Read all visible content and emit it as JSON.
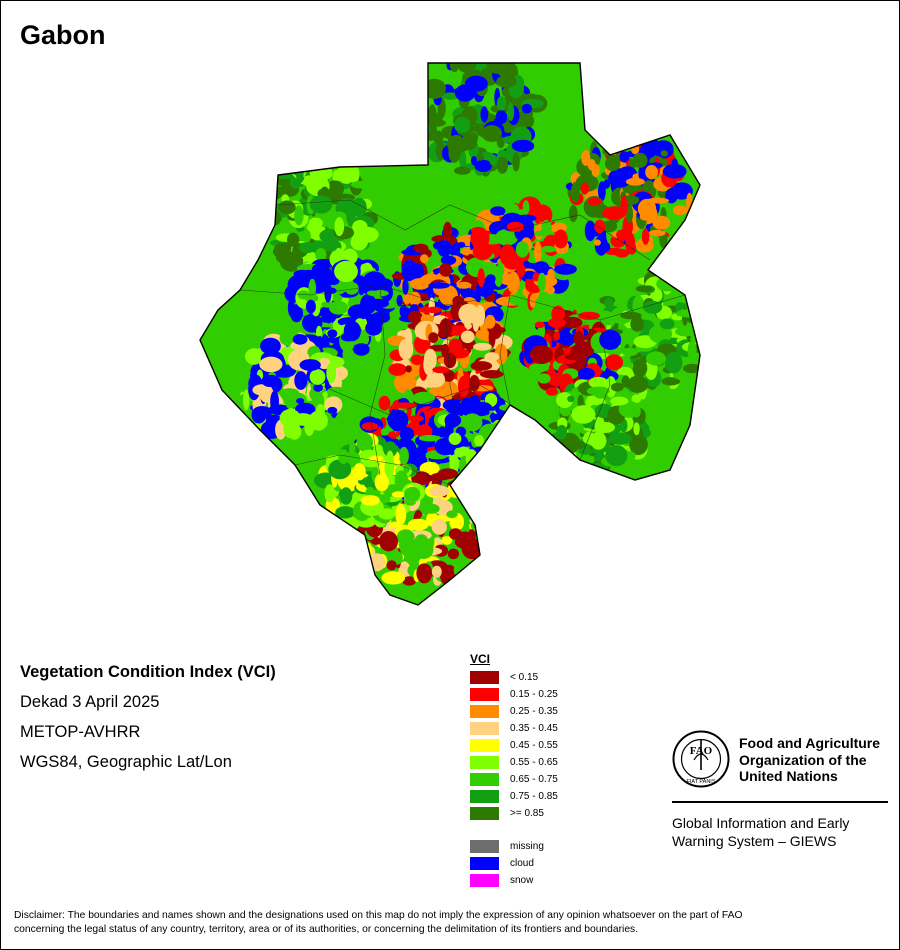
{
  "map": {
    "title": "Gabon",
    "product": "Vegetation Condition Index (VCI)",
    "period": "Dekad 3 April 2025",
    "sensor": "METOP-AVHRR",
    "projection": "WGS84, Geographic Lat/Lon"
  },
  "legend": {
    "title": "VCI",
    "classes": [
      {
        "label": "< 0.15",
        "color": "#a00000"
      },
      {
        "label": "0.15 - 0.25",
        "color": "#ff0000"
      },
      {
        "label": "0.25 - 0.35",
        "color": "#ff8c00"
      },
      {
        "label": "0.35 - 0.45",
        "color": "#ffd27f"
      },
      {
        "label": "0.45 - 0.55",
        "color": "#ffff00"
      },
      {
        "label": "0.55 - 0.65",
        "color": "#7fff00"
      },
      {
        "label": "0.65 - 0.75",
        "color": "#32cd00"
      },
      {
        "label": "0.75 - 0.85",
        "color": "#12a012"
      },
      {
        "label": ">= 0.85",
        "color": "#2d7a00"
      }
    ],
    "special": [
      {
        "label": "missing",
        "color": "#6e6e6e"
      },
      {
        "label": "cloud",
        "color": "#0000ff"
      },
      {
        "label": "snow",
        "color": "#ff00ff"
      }
    ]
  },
  "organization": {
    "name_line1": "Food and Agriculture",
    "name_line2": "Organization of the",
    "name_line3": "United Nations",
    "logo_letters": "FAO",
    "logo_motto": "FIAT PANIS",
    "system_line1": "Global Information and Early",
    "system_line2": "Warning System – GIEWS"
  },
  "disclaimer": {
    "line1": "Disclaimer: The boundaries and names shown and the designations used on this map do not imply the expression of any opinion whatsoever on the part of FAO",
    "line2": "concerning the legal status of any country, territory, area or of its authorities, or concerning the delimitation of its frontiers and boundaries."
  },
  "colors": {
    "frame": "#000000",
    "background": "#ffffff"
  }
}
